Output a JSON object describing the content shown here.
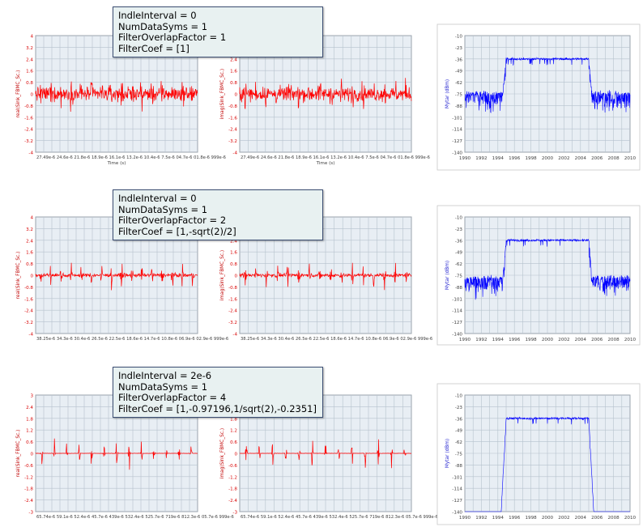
{
  "rows": [
    {
      "annotation": [
        "IndleInterval = 0",
        "NumDataSyms = 1",
        "FilterOverlapFactor = 1",
        "FilterCoef = [1]"
      ],
      "real_panel": {
        "ylabel": "real(Sink_FBMC_Sc.)",
        "xlabel": "Time (s)",
        "yticks": [
          "4",
          "3.2",
          "2.4",
          "1.6",
          "0.8",
          "0",
          "-0.8",
          "-1.6",
          "-2.4",
          "-3.2",
          "-4"
        ],
        "xtick_text": "27.49e-6 24.6e-6 21.8e-6 18.9e-6 16.1e-6 13.2e-6 10.4e-6 7.5e-6 04.7e-6 01.8e-6 999e-6"
      },
      "imag_panel": {
        "ylabel": "imag(Sink_FBMC_Sc.)",
        "xlabel": "Time (s)",
        "yticks": [
          "4",
          "3.2",
          "2.4",
          "1.6",
          "0.8",
          "0",
          "-0.8",
          "-1.6",
          "-2.4",
          "-3.2",
          "-4"
        ],
        "xtick_text": "27.49e-6 24.6e-6 21.8e-6 18.9e-6 16.1e-6 13.2e-6 10.4e-6 7.5e-6 04.7e-6 01.8e-6 999e-6"
      },
      "spectrum_panel": {
        "ylabel": "Mytar (dBm)",
        "yticks": [
          "-10",
          "-23",
          "-36",
          "-49",
          "-62",
          "-75",
          "-88",
          "-101",
          "-114",
          "-127",
          "-140"
        ],
        "xticks": [
          "1990",
          "1992",
          "1994",
          "1996",
          "1998",
          "2000",
          "2002",
          "2004",
          "2006",
          "2008",
          "2010"
        ]
      }
    },
    {
      "annotation": [
        "IndleInterval = 0",
        "NumDataSyms = 1",
        "FilterOverlapFactor = 2",
        "FilterCoef = [1,-sqrt(2)/2]"
      ],
      "real_panel": {
        "ylabel": "real(Sink_FBMC_Sc.)",
        "xlabel": "",
        "yticks": [
          "4",
          "3.2",
          "2.4",
          "1.6",
          "0.8",
          "0",
          "-0.8",
          "-1.6",
          "-2.4",
          "-3.2",
          "-4"
        ],
        "xtick_text": "38.25e-6 34.3e-6 30.4e-6 26.5e-6 22.5e-6 18.6e-6 14.7e-6 10.8e-6 06.9e-6 02.9e-6 999e-6"
      },
      "imag_panel": {
        "ylabel": "imag(Sink_FBMC_Sc.)",
        "xlabel": "",
        "yticks": [
          "4",
          "3.2",
          "2.4",
          "1.6",
          "0.8",
          "0",
          "-0.8",
          "-1.6",
          "-2.4",
          "-3.2",
          "-4"
        ],
        "xtick_text": "38.25e-6 34.3e-6 30.4e-6 26.5e-6 22.5e-6 18.6e-6 14.7e-6 10.8e-6 06.9e-6 02.9e-6 999e-6"
      },
      "spectrum_panel": {
        "ylabel": "Mytar (dBm)",
        "yticks": [
          "-10",
          "-23",
          "-36",
          "-49",
          "-62",
          "-75",
          "-88",
          "-101",
          "-114",
          "-127",
          "-140"
        ],
        "xticks": [
          "1990",
          "1992",
          "1994",
          "1996",
          "1998",
          "2000",
          "2002",
          "2004",
          "2006",
          "2008",
          "2010"
        ]
      }
    },
    {
      "annotation": [
        "IndleInterval = 2e-6",
        "NumDataSyms = 1",
        "FilterOverlapFactor = 4",
        "FilterCoef = [1,-0.97196,1/sqrt(2),-0.2351]"
      ],
      "real_panel": {
        "ylabel": "real(Sink_FBMC_Sc.)",
        "xlabel": "",
        "yticks": [
          "3",
          "2.4",
          "1.8",
          "1.2",
          "0.6",
          "0",
          "-0.6",
          "-1.2",
          "-1.8",
          "-2.4",
          "-3"
        ],
        "xtick_text": "65.74e-6 59.1e-6 52.4e-6 45.7e-6 439e-6 532.4e-6 525.7e-6 719e-6 812.3e-6 05.7e-6 999e-6"
      },
      "imag_panel": {
        "ylabel": "imag(Sink_FBMC_Sc.)",
        "xlabel": "",
        "yticks": [
          "3",
          "2.4",
          "1.8",
          "1.2",
          "0.6",
          "0",
          "-0.6",
          "-1.2",
          "-1.8",
          "-2.4",
          "-3"
        ],
        "xtick_text": "65.74e-6 59.1e-6 52.4e-6 45.7e-6 439e-6 532.4e-6 525.7e-6 719e-6 812.3e-6 05.7e-6 999e-6"
      },
      "spectrum_panel": {
        "ylabel": "Mytar (dBm)",
        "yticks": [
          "-10",
          "-23",
          "-36",
          "-49",
          "-62",
          "-75",
          "-88",
          "-101",
          "-114",
          "-127",
          "-140"
        ],
        "xticks": [
          "1990",
          "1992",
          "1994",
          "1996",
          "1998",
          "2000",
          "2002",
          "2004",
          "2006",
          "2008",
          "2010"
        ]
      }
    }
  ],
  "chart_data": [
    {
      "type": "line",
      "row": 1,
      "series": [
        {
          "name": "real(Sink_FBMC_Sc.)"
        }
      ],
      "ylim": [
        -4,
        4
      ],
      "xlabel": "Time (s)",
      "style": "dense noise bursts",
      "color": "#ff0000"
    },
    {
      "type": "line",
      "row": 1,
      "series": [
        {
          "name": "imag(Sink_FBMC_Sc.)"
        }
      ],
      "ylim": [
        -4,
        4
      ],
      "xlabel": "Time (s)",
      "style": "dense noise bursts",
      "color": "#ff0000"
    },
    {
      "type": "line",
      "row": 1,
      "series": [
        {
          "name": "Mytar"
        }
      ],
      "xlim": [
        1990,
        2010
      ],
      "ylim": [
        -140,
        -10
      ],
      "passband": [
        1995,
        2005
      ],
      "passband_level": -36,
      "stopband_level": -75,
      "color": "#0000ff"
    },
    {
      "type": "line",
      "row": 2,
      "series": [
        {
          "name": "real(Sink_FBMC_Sc.)"
        }
      ],
      "ylim": [
        -4,
        4
      ],
      "style": "periodic bursts",
      "color": "#ff0000"
    },
    {
      "type": "line",
      "row": 2,
      "series": [
        {
          "name": "imag(Sink_FBMC_Sc.)"
        }
      ],
      "ylim": [
        -4,
        4
      ],
      "style": "periodic bursts",
      "color": "#ff0000"
    },
    {
      "type": "line",
      "row": 2,
      "series": [
        {
          "name": "Mytar"
        }
      ],
      "xlim": [
        1990,
        2010
      ],
      "ylim": [
        -140,
        -10
      ],
      "passband": [
        1995,
        2005
      ],
      "passband_level": -36,
      "stopband_level": -78,
      "color": "#0000ff"
    },
    {
      "type": "line",
      "row": 3,
      "series": [
        {
          "name": "real(Sink_FBMC_Sc.)"
        }
      ],
      "ylim": [
        -3,
        3
      ],
      "style": "isolated bursts",
      "color": "#ff0000"
    },
    {
      "type": "line",
      "row": 3,
      "series": [
        {
          "name": "imag(Sink_FBMC_Sc.)"
        }
      ],
      "ylim": [
        -3,
        3
      ],
      "style": "isolated bursts",
      "color": "#ff0000"
    },
    {
      "type": "line",
      "row": 3,
      "series": [
        {
          "name": "Mytar"
        }
      ],
      "xlim": [
        1990,
        2010
      ],
      "ylim": [
        -140,
        -10
      ],
      "passband": [
        1995,
        2005
      ],
      "passband_level": -36,
      "stopband_level": -140,
      "color": "#0000ff"
    }
  ]
}
